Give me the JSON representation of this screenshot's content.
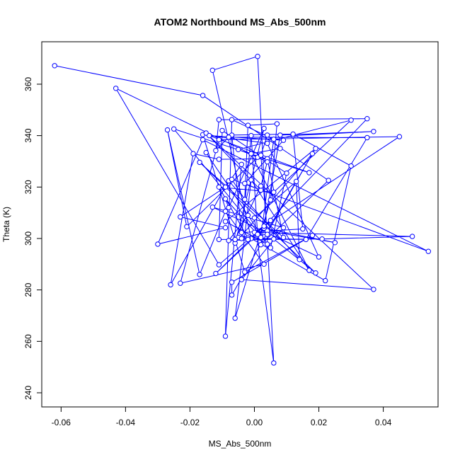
{
  "chart_data": {
    "type": "line",
    "title": "ATOM2 Northbound MS_Abs_500nm",
    "xlabel": "MS_Abs_500nm",
    "ylabel": "Theta (K)",
    "xlim": [
      -0.066,
      0.057
    ],
    "ylim": [
      234.5,
      376.5
    ],
    "x_ticks": [
      -0.06,
      -0.04,
      -0.02,
      0.0,
      0.02,
      0.04
    ],
    "x_tick_labels": [
      "-0.06",
      "-0.04",
      "-0.02",
      "0.00",
      "0.02",
      "0.04"
    ],
    "y_ticks": [
      240,
      260,
      280,
      300,
      320,
      340,
      360
    ],
    "y_tick_labels": [
      "240",
      "260",
      "280",
      "300",
      "320",
      "340",
      "360"
    ],
    "grid": false,
    "marker": "open-circle",
    "series": [
      {
        "color": "#0000ff",
        "points": [
          [
            -0.062,
            367.2
          ],
          [
            -0.016,
            355.6
          ],
          [
            0.023,
            322.6
          ],
          [
            0.002,
            297.6
          ],
          [
            0.008,
            340.2
          ],
          [
            0.037,
            341.6
          ],
          [
            0.012,
            340.0
          ],
          [
            0.015,
            303.7
          ],
          [
            -0.004,
            302.3
          ],
          [
            -0.007,
            340.2
          ],
          [
            0.012,
            340.6
          ],
          [
            0.03,
            328.2
          ],
          [
            0.022,
            283.6
          ],
          [
            -0.001,
            300.0
          ],
          [
            -0.013,
            365.4
          ],
          [
            0.001,
            370.8
          ],
          [
            0.006,
            251.6
          ],
          [
            0.0,
            308.0
          ],
          [
            0.013,
            322.2
          ],
          [
            0.014,
            291.8
          ],
          [
            -0.008,
            322.4
          ],
          [
            -0.026,
            282.0
          ],
          [
            -0.019,
            333.0
          ],
          [
            -0.011,
            330.8
          ],
          [
            0.004,
            331.0
          ],
          [
            0.009,
            300.4
          ],
          [
            -0.017,
            329.6
          ],
          [
            0.019,
            286.6
          ],
          [
            0.006,
            299.8
          ],
          [
            -0.008,
            299.2
          ],
          [
            -0.002,
            309.0
          ],
          [
            -0.015,
            333.4
          ],
          [
            0.004,
            297.8
          ],
          [
            -0.009,
            306.6
          ],
          [
            0.019,
            335.0
          ],
          [
            0.004,
            303.0
          ],
          [
            0.025,
            298.4
          ],
          [
            0.003,
            304.0
          ],
          [
            -0.012,
            286.4
          ],
          [
            0.003,
            304.8
          ],
          [
            0.035,
            346.6
          ],
          [
            -0.011,
            346.2
          ],
          [
            -0.012,
            334.2
          ],
          [
            -0.008,
            339.4
          ],
          [
            0.035,
            339.2
          ],
          [
            0.016,
            299.6
          ],
          [
            -0.002,
            300.2
          ],
          [
            -0.011,
            320.0
          ],
          [
            0.006,
            318.0
          ],
          [
            0.03,
            346.0
          ],
          [
            -0.005,
            334.6
          ],
          [
            0.001,
            331.6
          ],
          [
            -0.021,
            304.6
          ],
          [
            -0.027,
            342.2
          ],
          [
            -0.017,
            286.0
          ],
          [
            -0.009,
            310.6
          ],
          [
            0.003,
            290.0
          ],
          [
            -0.023,
            282.6
          ],
          [
            -0.011,
            338.4
          ],
          [
            0.045,
            339.6
          ],
          [
            0.0,
            302.4
          ],
          [
            0.049,
            300.8
          ],
          [
            0.021,
            299.8
          ],
          [
            -0.002,
            299.6
          ],
          [
            0.002,
            300.4
          ],
          [
            0.006,
            338.6
          ],
          [
            -0.007,
            346.2
          ],
          [
            -0.009,
            262.0
          ],
          [
            -0.004,
            328.8
          ],
          [
            -0.009,
            320.0
          ],
          [
            -0.023,
            308.4
          ],
          [
            -0.009,
            304.2
          ],
          [
            -0.03,
            297.8
          ],
          [
            -0.016,
            338.4
          ],
          [
            0.054,
            295.0
          ],
          [
            -0.007,
            323.0
          ],
          [
            -0.003,
            315.2
          ],
          [
            -0.002,
            344.0
          ],
          [
            0.007,
            344.6
          ],
          [
            0.005,
            315.0
          ],
          [
            -0.006,
            269.0
          ],
          [
            -0.001,
            322.8
          ],
          [
            0.017,
            287.6
          ],
          [
            -0.001,
            333.0
          ],
          [
            0.008,
            335.0
          ],
          [
            0.004,
            340.2
          ],
          [
            0.002,
            332.4
          ],
          [
            0.004,
            301.6
          ],
          [
            -0.005,
            300.4
          ],
          [
            -0.004,
            300.0
          ],
          [
            -0.001,
            340.0
          ],
          [
            0.001,
            301.6
          ],
          [
            -0.009,
            315.4
          ],
          [
            -0.008,
            312.0
          ],
          [
            0.003,
            342.8
          ],
          [
            -0.006,
            298.2
          ],
          [
            0.018,
            333.0
          ],
          [
            -0.007,
            278.0
          ],
          [
            -0.007,
            283.0
          ],
          [
            0.018,
            301.2
          ],
          [
            -0.003,
            287.0
          ],
          [
            -0.016,
            340.4
          ],
          [
            0.004,
            337.0
          ],
          [
            0.02,
            292.8
          ],
          [
            -0.013,
            312.2
          ],
          [
            0.009,
            304.2
          ],
          [
            -0.004,
            284.0
          ],
          [
            0.037,
            280.2
          ],
          [
            -0.015,
            341.0
          ],
          [
            0.002,
            318.8
          ],
          [
            -0.003,
            321.4
          ],
          [
            0.009,
            338.2
          ],
          [
            -0.014,
            340.0
          ],
          [
            0.017,
            325.6
          ],
          [
            -0.025,
            342.6
          ],
          [
            0.005,
            296.4
          ],
          [
            0.01,
            325.4
          ],
          [
            -0.01,
            342.0
          ],
          [
            -0.011,
            299.6
          ],
          [
            -0.006,
            299.6
          ],
          [
            0.002,
            320.4
          ],
          [
            0.004,
            329.8
          ],
          [
            -0.043,
            358.4
          ],
          [
            -0.011,
            289.8
          ],
          [
            0.005,
            307.0
          ]
        ]
      }
    ]
  }
}
